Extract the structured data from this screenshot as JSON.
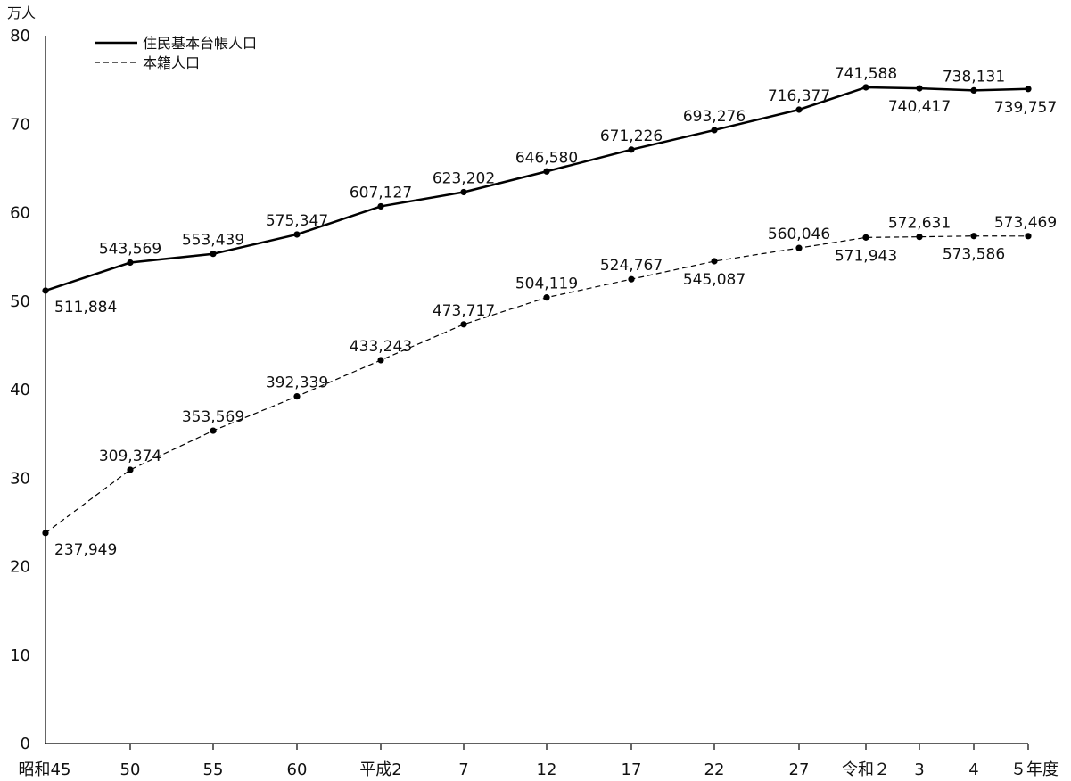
{
  "chart_data": {
    "type": "line",
    "y_unit": "万人",
    "x_unit": "年度",
    "categories": [
      "昭和45",
      "50",
      "55",
      "60",
      "平成2",
      "7",
      "12",
      "17",
      "22",
      "27",
      "令和２",
      "3",
      "4",
      "５"
    ],
    "ylim": [
      0,
      80
    ],
    "y_ticks": [
      0,
      10,
      20,
      30,
      40,
      50,
      60,
      70,
      80
    ],
    "grid": false,
    "legend_position": "top-left",
    "series": [
      {
        "name": "住民基本台帳人口",
        "style": "solid",
        "color": "#000000",
        "values": [
          511884,
          543569,
          553439,
          575347,
          607127,
          623202,
          646580,
          671226,
          693276,
          716377,
          741588,
          740417,
          738131,
          739757
        ],
        "labels": [
          "511,884",
          "543,569",
          "553,439",
          "575,347",
          "607,127",
          "623,202",
          "646,580",
          "671,226",
          "693,276",
          "716,377",
          "741,588",
          "740,417",
          "738,131",
          "739,757"
        ]
      },
      {
        "name": "本籍人口",
        "style": "dashed",
        "color": "#000000",
        "values": [
          237949,
          309374,
          353569,
          392339,
          433243,
          473717,
          504119,
          524767,
          545087,
          560046,
          571943,
          572631,
          573586,
          573469
        ],
        "labels": [
          "237,949",
          "309,374",
          "353,569",
          "392,339",
          "433,243",
          "473,717",
          "504,119",
          "524,767",
          "545,087",
          "560,046",
          "571,943",
          "572,631",
          "573,586",
          "573,469"
        ]
      }
    ]
  }
}
